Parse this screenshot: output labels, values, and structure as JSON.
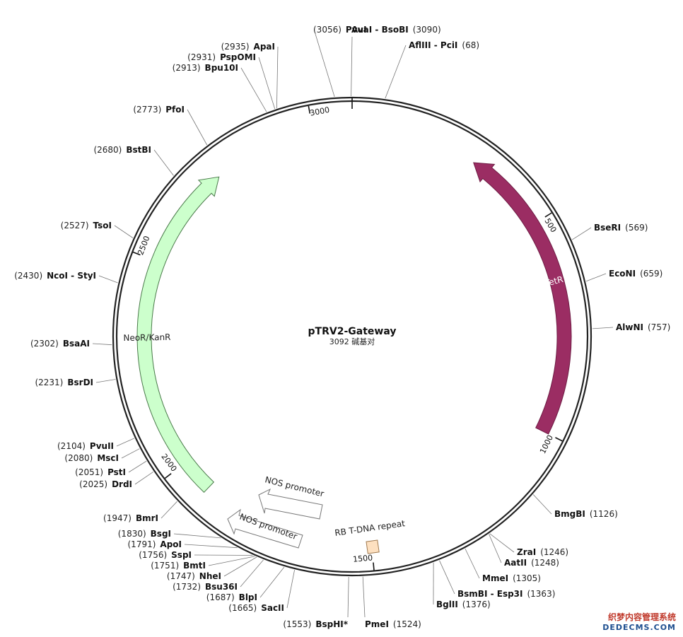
{
  "plasmid": {
    "name": "pTRV2-Gateway",
    "size_text": "3092 碱基对",
    "length": 3092
  },
  "enzymes": [
    {
      "id": "avai-bsobi",
      "name": "AvaI - BsoBI",
      "pos": 3090,
      "pos_text": "(3090)",
      "side": "right"
    },
    {
      "id": "afliii-pcii",
      "name": "AflIII - PciI",
      "pos": 68,
      "pos_text": "(68)",
      "side": "right"
    },
    {
      "id": "bseri",
      "name": "BseRI",
      "pos": 569,
      "pos_text": "(569)",
      "side": "right"
    },
    {
      "id": "econi",
      "name": "EcoNI",
      "pos": 659,
      "pos_text": "(659)",
      "side": "right"
    },
    {
      "id": "alwni",
      "name": "AlwNI",
      "pos": 757,
      "pos_text": "(757)",
      "side": "right"
    },
    {
      "id": "bmgbi",
      "name": "BmgBI",
      "pos": 1126,
      "pos_text": "(1126)",
      "side": "right"
    },
    {
      "id": "zrai",
      "name": "ZraI",
      "pos": 1246,
      "pos_text": "(1246)",
      "side": "right"
    },
    {
      "id": "aatii",
      "name": "AatII",
      "pos": 1248,
      "pos_text": "(1248)",
      "side": "right"
    },
    {
      "id": "mmei",
      "name": "MmeI",
      "pos": 1305,
      "pos_text": "(1305)",
      "side": "right"
    },
    {
      "id": "bsmbi-esp3i",
      "name": "BsmBI - Esp3I",
      "pos": 1363,
      "pos_text": "(1363)",
      "side": "right"
    },
    {
      "id": "bglii",
      "name": "BglII",
      "pos": 1376,
      "pos_text": "(1376)",
      "side": "right"
    },
    {
      "id": "pmei",
      "name": "PmeI",
      "pos": 1524,
      "pos_text": "(1524)",
      "side": "right"
    },
    {
      "id": "bsphi",
      "name": "BspHI*",
      "pos": 1553,
      "pos_text": "(1553)",
      "side": "left"
    },
    {
      "id": "sacii",
      "name": "SacII",
      "pos": 1665,
      "pos_text": "(1665)",
      "side": "left"
    },
    {
      "id": "blpi",
      "name": "BlpI",
      "pos": 1687,
      "pos_text": "(1687)",
      "side": "left"
    },
    {
      "id": "bsu36i",
      "name": "Bsu36I",
      "pos": 1732,
      "pos_text": "(1732)",
      "side": "left"
    },
    {
      "id": "nhei",
      "name": "NheI",
      "pos": 1747,
      "pos_text": "(1747)",
      "side": "left"
    },
    {
      "id": "bmti",
      "name": "BmtI",
      "pos": 1751,
      "pos_text": "(1751)",
      "side": "left"
    },
    {
      "id": "sspi",
      "name": "SspI",
      "pos": 1756,
      "pos_text": "(1756)",
      "side": "left"
    },
    {
      "id": "apoi",
      "name": "ApoI",
      "pos": 1791,
      "pos_text": "(1791)",
      "side": "left"
    },
    {
      "id": "bsgi",
      "name": "BsgI",
      "pos": 1830,
      "pos_text": "(1830)",
      "side": "left"
    },
    {
      "id": "bmri",
      "name": "BmrI",
      "pos": 1947,
      "pos_text": "(1947)",
      "side": "left"
    },
    {
      "id": "drdi",
      "name": "DrdI",
      "pos": 2025,
      "pos_text": "(2025)",
      "side": "left"
    },
    {
      "id": "psti",
      "name": "PstI",
      "pos": 2051,
      "pos_text": "(2051)",
      "side": "left"
    },
    {
      "id": "msci",
      "name": "MscI",
      "pos": 2080,
      "pos_text": "(2080)",
      "side": "left"
    },
    {
      "id": "pvuii",
      "name": "PvuII",
      "pos": 2104,
      "pos_text": "(2104)",
      "side": "left"
    },
    {
      "id": "bsrdi",
      "name": "BsrDI",
      "pos": 2231,
      "pos_text": "(2231)",
      "side": "left"
    },
    {
      "id": "bsaai",
      "name": "BsaAI",
      "pos": 2302,
      "pos_text": "(2302)",
      "side": "left"
    },
    {
      "id": "ncoi-styi",
      "name": "NcoI - StyI",
      "pos": 2430,
      "pos_text": "(2430)",
      "side": "left"
    },
    {
      "id": "tsoi",
      "name": "TsoI",
      "pos": 2527,
      "pos_text": "(2527)",
      "side": "left"
    },
    {
      "id": "bstbi",
      "name": "BstBI",
      "pos": 2680,
      "pos_text": "(2680)",
      "side": "left"
    },
    {
      "id": "pfoi",
      "name": "PfoI",
      "pos": 2773,
      "pos_text": "(2773)",
      "side": "left"
    },
    {
      "id": "bpu10i",
      "name": "Bpu10I",
      "pos": 2913,
      "pos_text": "(2913)",
      "side": "left"
    },
    {
      "id": "pspomi",
      "name": "PspOMI",
      "pos": 2931,
      "pos_text": "(2931)",
      "side": "left"
    },
    {
      "id": "apai",
      "name": "ApaI",
      "pos": 2935,
      "pos_text": "(2935)",
      "side": "left"
    },
    {
      "id": "pvui",
      "name": "PvuI",
      "pos": 3056,
      "pos_text": "(3056)",
      "side": "left"
    }
  ],
  "ticks": [
    {
      "pos": 500,
      "label": "500"
    },
    {
      "pos": 1000,
      "label": "1000"
    },
    {
      "pos": 1500,
      "label": "1500"
    },
    {
      "pos": 2000,
      "label": "2000"
    },
    {
      "pos": 2500,
      "label": "2500"
    },
    {
      "pos": 3000,
      "label": "3000"
    }
  ],
  "features": [
    {
      "id": "tetr",
      "label": "TetR",
      "start": 300,
      "end": 1000,
      "direction": "reverse",
      "color": "#9b2d63",
      "stroke": "#6e1c44",
      "text_color": "#ffffff"
    },
    {
      "id": "neor-kanr",
      "label": "NeoR/KanR",
      "start": 1920,
      "end": 2750,
      "direction": "forward",
      "color": "#ccffcc",
      "stroke": "#4a7a4a",
      "text_color": "#222222"
    },
    {
      "id": "rb-tdna",
      "label": "RB T-DNA repeat",
      "color": "#fde0c0",
      "stroke": "#a07a50"
    },
    {
      "id": "nos-promoter-1",
      "label": "NOS promoter",
      "color": "#ffffff",
      "stroke": "#777777"
    },
    {
      "id": "nos-promoter-2",
      "label": "NOS promoter",
      "color": "#ffffff",
      "stroke": "#777777"
    }
  ],
  "watermark": {
    "line1": "织梦内容管理系统",
    "line2": "DEDECMS.COM"
  }
}
